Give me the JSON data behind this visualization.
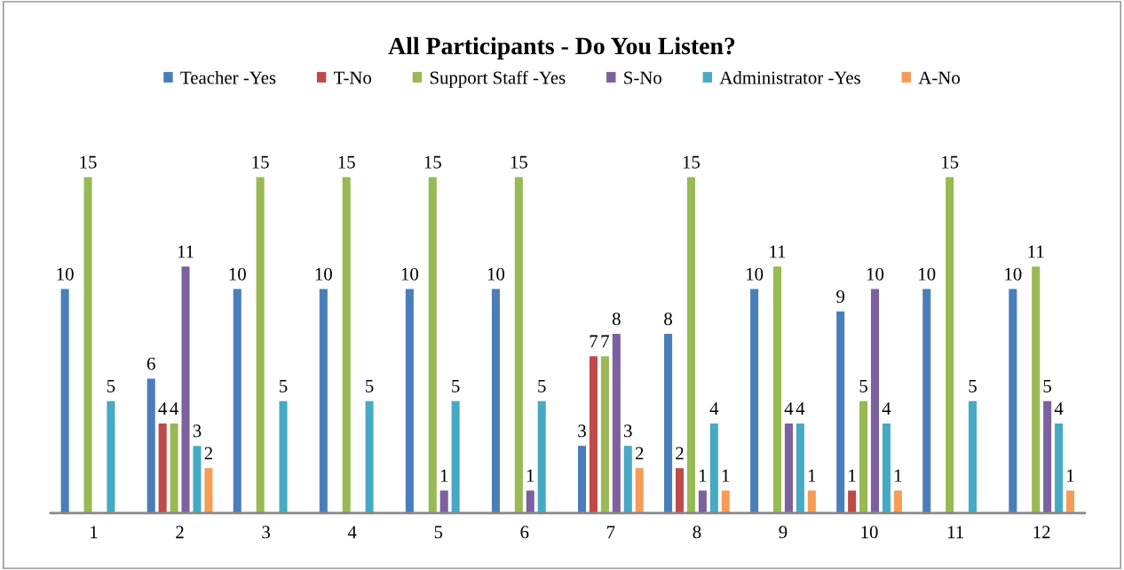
{
  "chart_data": {
    "type": "bar",
    "title": "All Participants - Do You Listen?",
    "categories": [
      "1",
      "2",
      "3",
      "4",
      "5",
      "6",
      "7",
      "8",
      "9",
      "10",
      "11",
      "12"
    ],
    "legend": "top",
    "grid": false,
    "series": [
      {
        "name": "Teacher -Yes",
        "color": "#4a7ebb",
        "values": [
          10,
          6,
          10,
          10,
          10,
          10,
          3,
          8,
          10,
          9,
          10,
          10
        ],
        "value_labels": [
          "10",
          "6",
          "10",
          "10",
          "10",
          "10",
          "3",
          "8",
          "10",
          "9",
          "10",
          "10"
        ]
      },
      {
        "name": "T-No",
        "color": "#be4b48",
        "values": [
          0,
          4,
          0,
          0,
          0,
          0,
          7,
          2,
          0,
          1,
          0,
          0
        ],
        "value_labels": [
          null,
          "4",
          null,
          null,
          null,
          null,
          "7",
          "2",
          null,
          "1",
          null,
          null
        ]
      },
      {
        "name": "Support Staff -Yes",
        "color": "#98b954",
        "values": [
          15,
          4,
          15,
          15,
          15,
          15,
          7,
          15,
          11,
          5,
          15,
          11
        ],
        "value_labels": [
          "15",
          "4",
          "15",
          "15",
          "15",
          "15",
          "7",
          "15",
          "11",
          "5",
          "15",
          "11"
        ]
      },
      {
        "name": "S-No",
        "color": "#7d60a0",
        "values": [
          0,
          11,
          0,
          0,
          1,
          1,
          8,
          1,
          4,
          10,
          0,
          5
        ],
        "value_labels": [
          null,
          "11",
          null,
          null,
          "1",
          "1",
          "8",
          "1",
          "4",
          "10",
          null,
          "5"
        ]
      },
      {
        "name": "Administrator -Yes",
        "color": "#46aac5",
        "values": [
          5,
          3,
          5,
          5,
          5,
          5,
          3,
          4,
          4,
          4,
          5,
          4
        ],
        "value_labels": [
          "5",
          "3",
          "5",
          "5",
          "5",
          "5",
          "3",
          "4",
          "4",
          "4",
          "5",
          "4"
        ]
      },
      {
        "name": "A-No",
        "color": "#f59d56",
        "values": [
          0,
          2,
          0,
          0,
          0,
          0,
          2,
          1,
          1,
          1,
          0,
          1
        ],
        "value_labels": [
          null,
          "2",
          null,
          null,
          null,
          null,
          "2",
          "1",
          "1",
          "1",
          null,
          "1"
        ]
      }
    ]
  }
}
